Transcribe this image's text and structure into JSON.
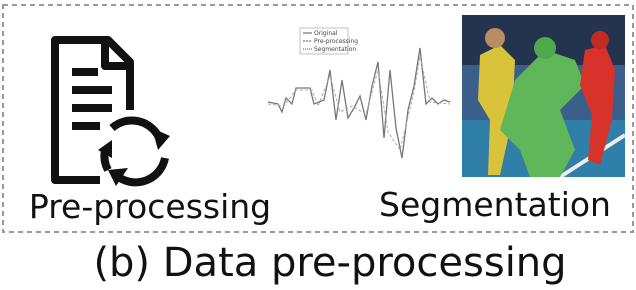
{
  "panels": [
    {
      "label": "Pre-processing"
    },
    {
      "label": "Segmentation",
      "legend": [
        "Original",
        "Pre-processing",
        "Segmentation"
      ]
    }
  ],
  "caption": "(b) Data pre-processing"
}
